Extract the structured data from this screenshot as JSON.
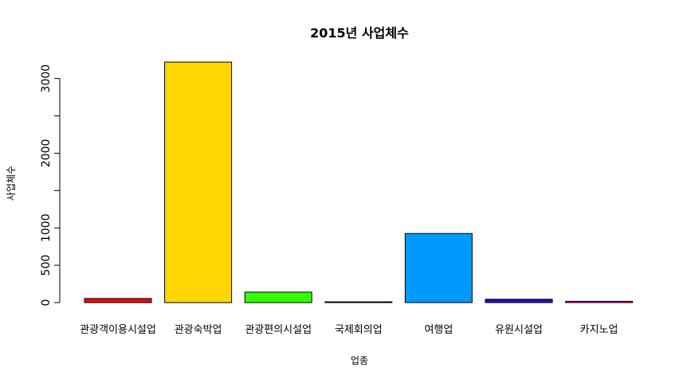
{
  "chart_data": {
    "type": "bar",
    "title": "2015년 사업체수",
    "xlabel": "업종",
    "ylabel": "사업체수",
    "categories": [
      "관광객이용시설업",
      "관광숙박업",
      "관광편의시설업",
      "국제회의업",
      "여행업",
      "유원시설업",
      "카지노업"
    ],
    "values": [
      55,
      3220,
      140,
      10,
      925,
      45,
      17
    ],
    "colors": [
      "#FF0000",
      "#FFD700",
      "#33FF00",
      "#00CC66",
      "#0099FF",
      "#3300CC",
      "#FF00CC"
    ],
    "yticks": [
      0,
      500,
      1000,
      2000,
      3000
    ],
    "ylim": [
      0,
      3220
    ],
    "grid": false,
    "legend": "none"
  }
}
